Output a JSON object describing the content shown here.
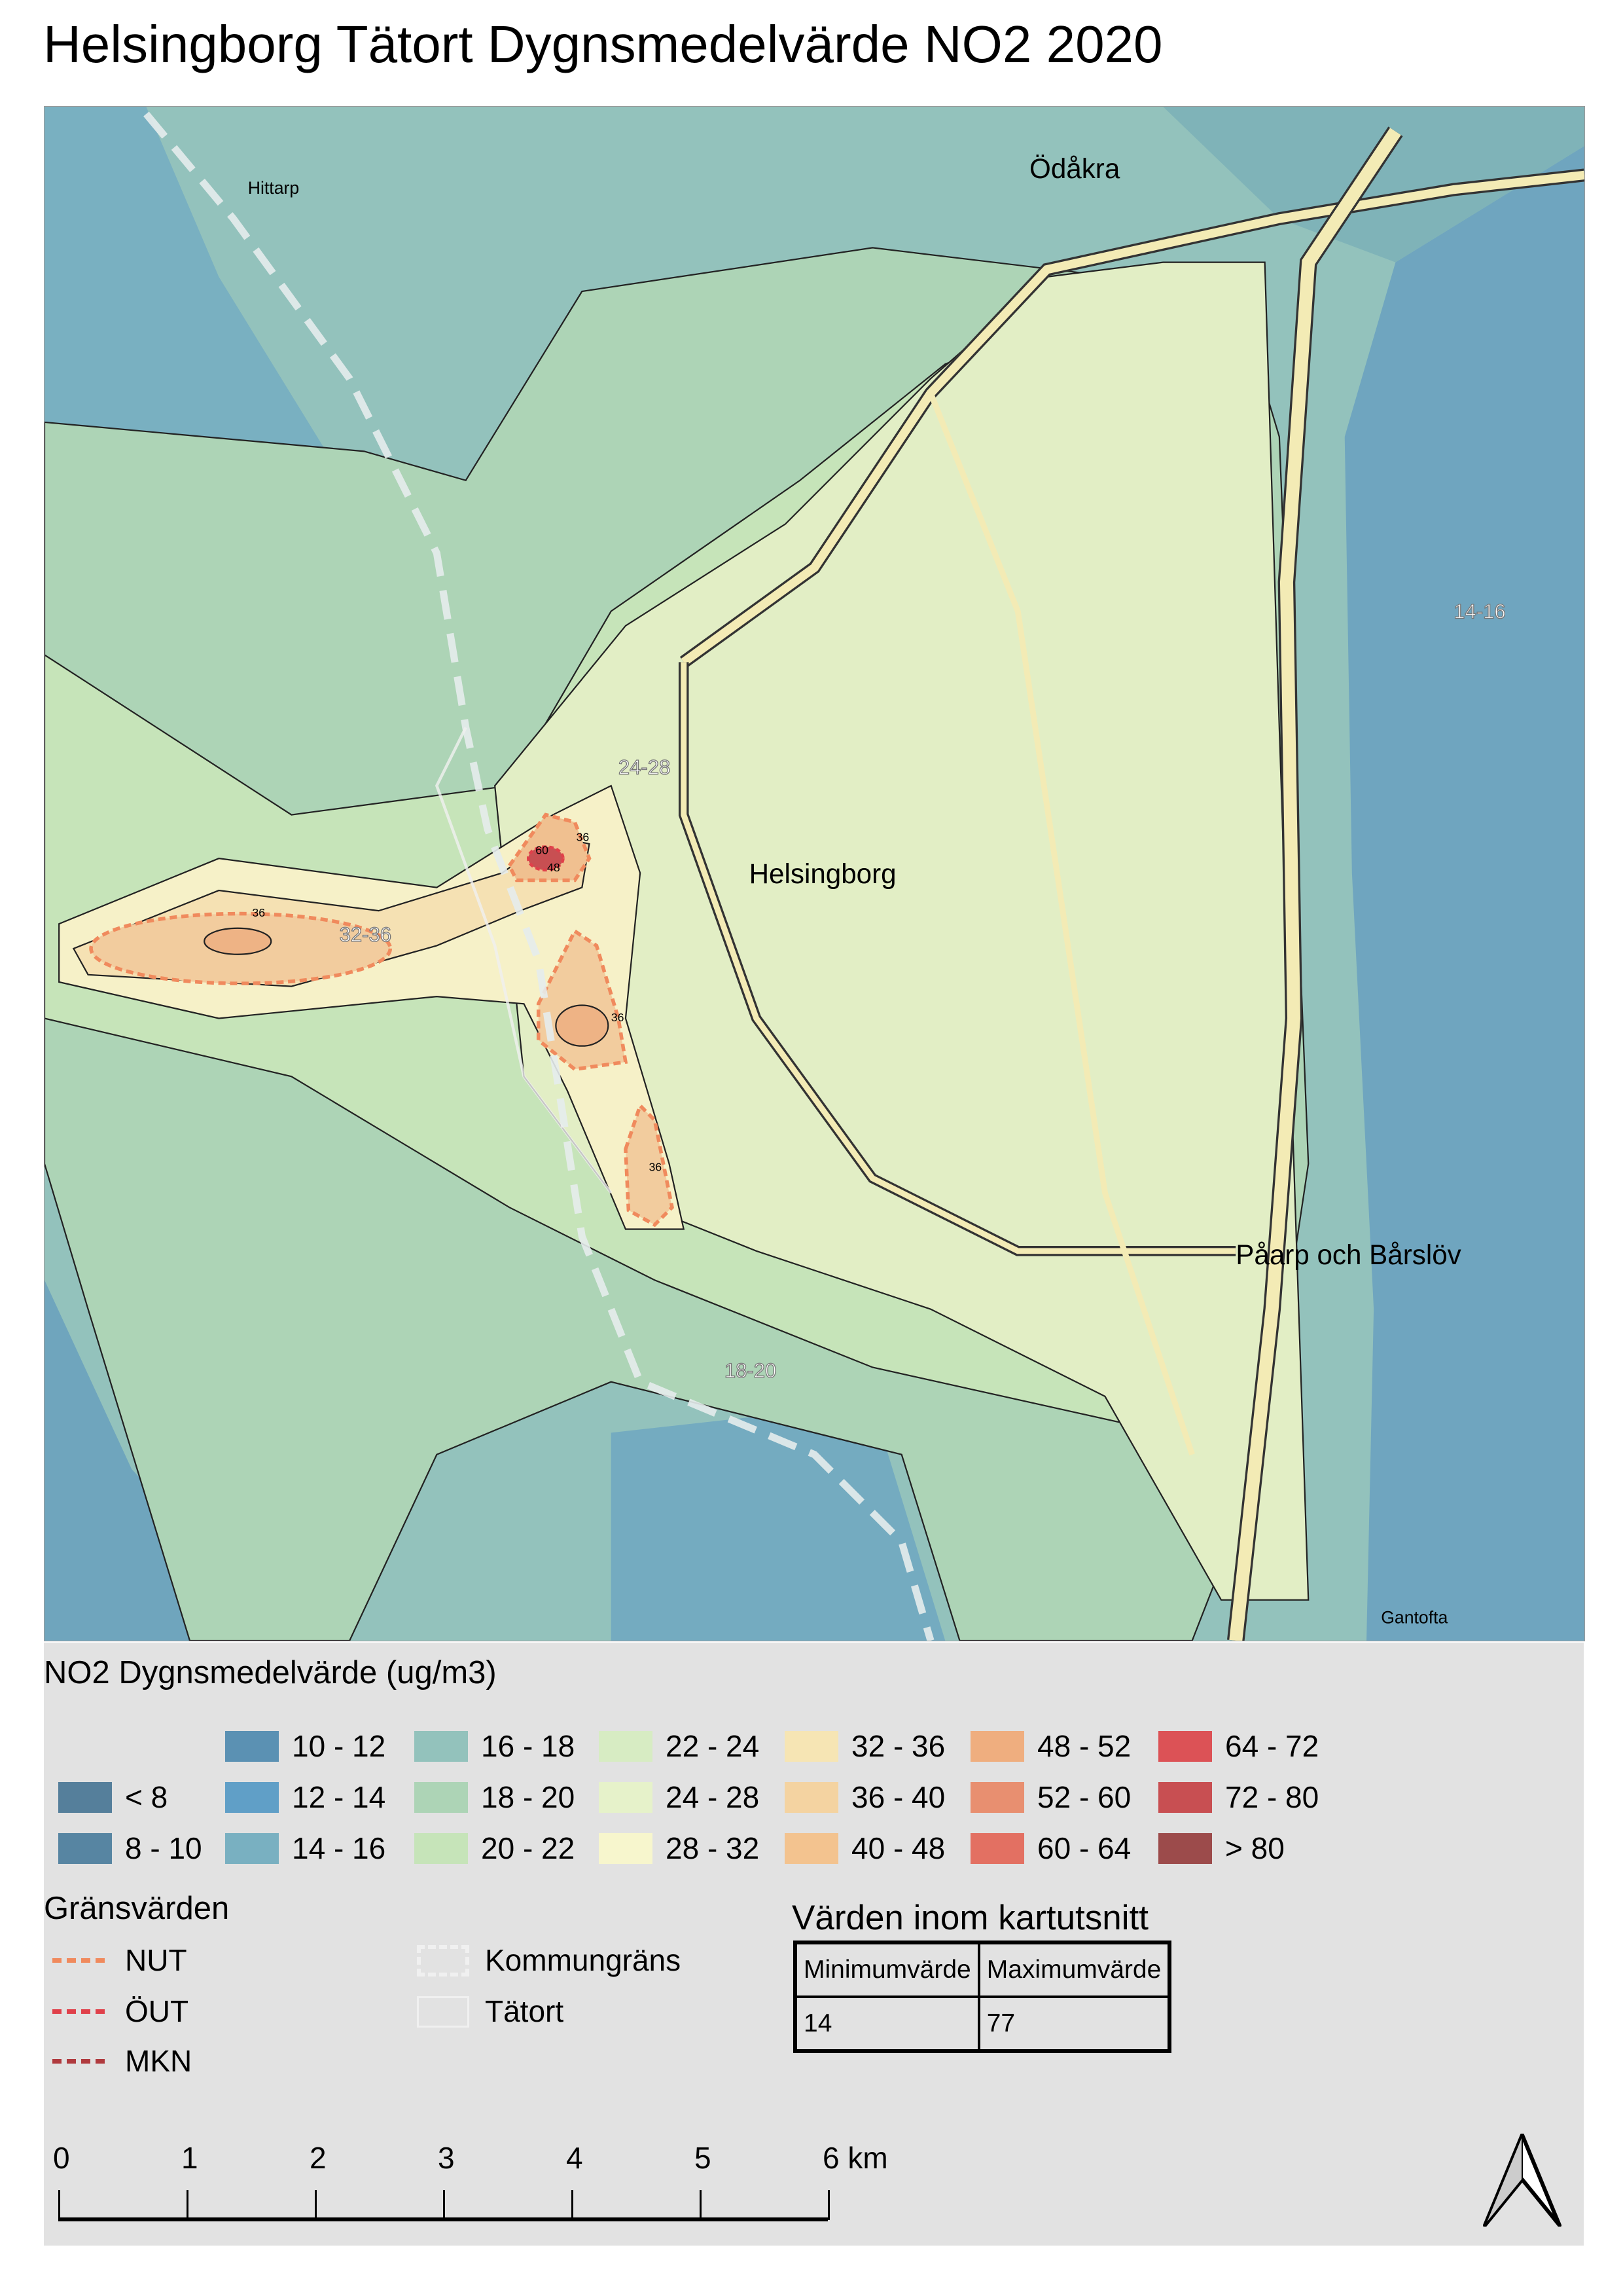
{
  "title": "Helsingborg Tätort Dygnsmedelvärde NO2 2020",
  "map": {
    "place_labels": [
      "Hittarp",
      "Ödåkra",
      "Helsingborg",
      "Påarp och Bårslöv",
      "Gantofta"
    ],
    "zone_labels": [
      "14-16",
      "24-28",
      "32-36",
      "18-20"
    ],
    "contour_labels": [
      "36",
      "36",
      "36",
      "36",
      "60",
      "48"
    ]
  },
  "legend": {
    "title": "NO2 Dygnsmedelvärde (ug/m3)",
    "classes": [
      {
        "label": "< 8",
        "color": "#557f9b"
      },
      {
        "label": "8 - 10",
        "color": "#5785a2"
      },
      {
        "label": "10 - 12",
        "color": "#5b91b3"
      },
      {
        "label": "12 - 14",
        "color": "#609fc7"
      },
      {
        "label": "14 - 16",
        "color": "#79b0c1"
      },
      {
        "label": "16 - 18",
        "color": "#93c2bc"
      },
      {
        "label": "18 - 20",
        "color": "#add4b6"
      },
      {
        "label": "20 - 22",
        "color": "#c6e4b9"
      },
      {
        "label": "22 - 24",
        "color": "#d7ecc3"
      },
      {
        "label": "24 - 28",
        "color": "#e6f2ca"
      },
      {
        "label": "28 - 32",
        "color": "#f7f6cd"
      },
      {
        "label": "32 - 36",
        "color": "#f6e5b4"
      },
      {
        "label": "36 - 40",
        "color": "#f4d3a1"
      },
      {
        "label": "40 - 48",
        "color": "#f3c38f"
      },
      {
        "label": "48 - 52",
        "color": "#efae7f"
      },
      {
        "label": "52 - 60",
        "color": "#e88f70"
      },
      {
        "label": "60 - 64",
        "color": "#e37062"
      },
      {
        "label": "64 - 72",
        "color": "#dc5256"
      },
      {
        "label": "72 - 80",
        "color": "#c84f52"
      },
      {
        "label": "> 80",
        "color": "#9c4b4b"
      }
    ],
    "limits_title": "Gränsvärden",
    "limits": [
      {
        "label": "NUT",
        "color": "#f08a5d"
      },
      {
        "label": "ÖUT",
        "color": "#e0404a"
      },
      {
        "label": "MKN",
        "color": "#b03a3e"
      }
    ],
    "boundaries": [
      {
        "label": "Kommungräns"
      },
      {
        "label": "Tätort"
      }
    ],
    "values_title": "Värden inom kartutsnitt",
    "values_table": {
      "headers": [
        "Minimumvärde",
        "Maximumvärde"
      ],
      "row": [
        "14",
        "77"
      ]
    },
    "scale": {
      "labels": [
        "0",
        "1",
        "2",
        "3",
        "4",
        "5",
        "6 km"
      ]
    },
    "north_arrow": "north-arrow-icon"
  }
}
